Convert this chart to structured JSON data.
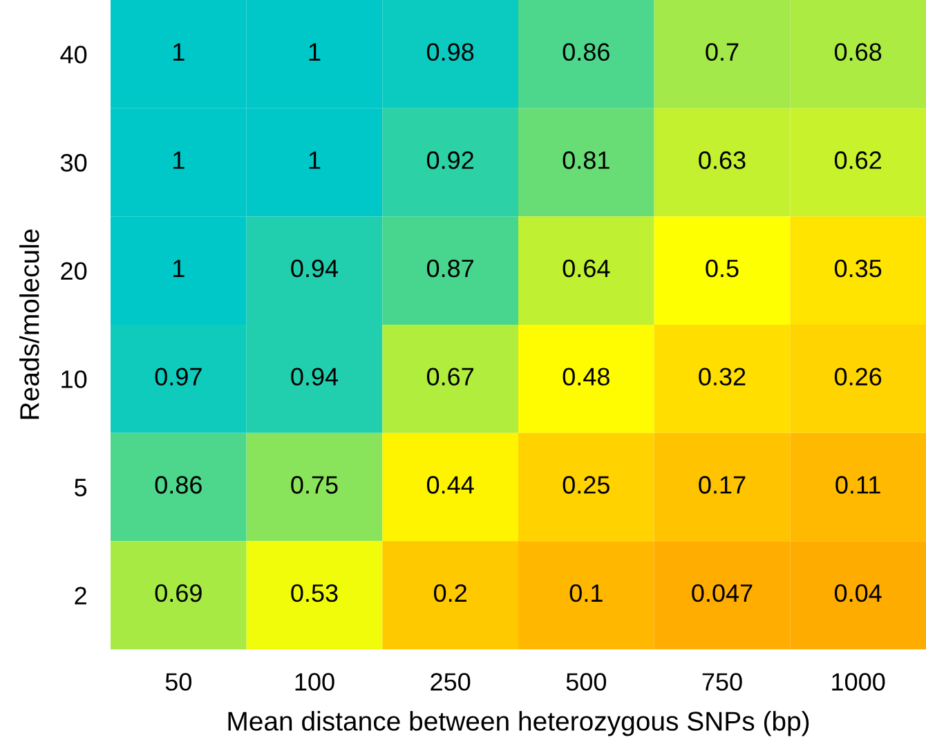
{
  "chart_data": {
    "type": "heatmap",
    "xlabel": "Mean distance between heterozygous SNPs (bp)",
    "ylabel": "Reads/molecule",
    "categories": [
      "50",
      "100",
      "250",
      "500",
      "750",
      "1000"
    ],
    "y_categories": [
      "40",
      "30",
      "20",
      "10",
      "5",
      "2"
    ],
    "cells": [
      [
        1,
        1,
        0.98,
        0.86,
        0.7,
        0.68
      ],
      [
        1,
        1,
        0.92,
        0.81,
        0.63,
        0.62
      ],
      [
        1,
        0.94,
        0.87,
        0.64,
        0.5,
        0.35
      ],
      [
        0.97,
        0.94,
        0.67,
        0.48,
        0.32,
        0.26
      ],
      [
        0.86,
        0.75,
        0.44,
        0.25,
        0.17,
        0.11
      ],
      [
        0.69,
        0.53,
        0.2,
        0.1,
        0.047,
        0.04
      ]
    ],
    "data_labels": true
  }
}
